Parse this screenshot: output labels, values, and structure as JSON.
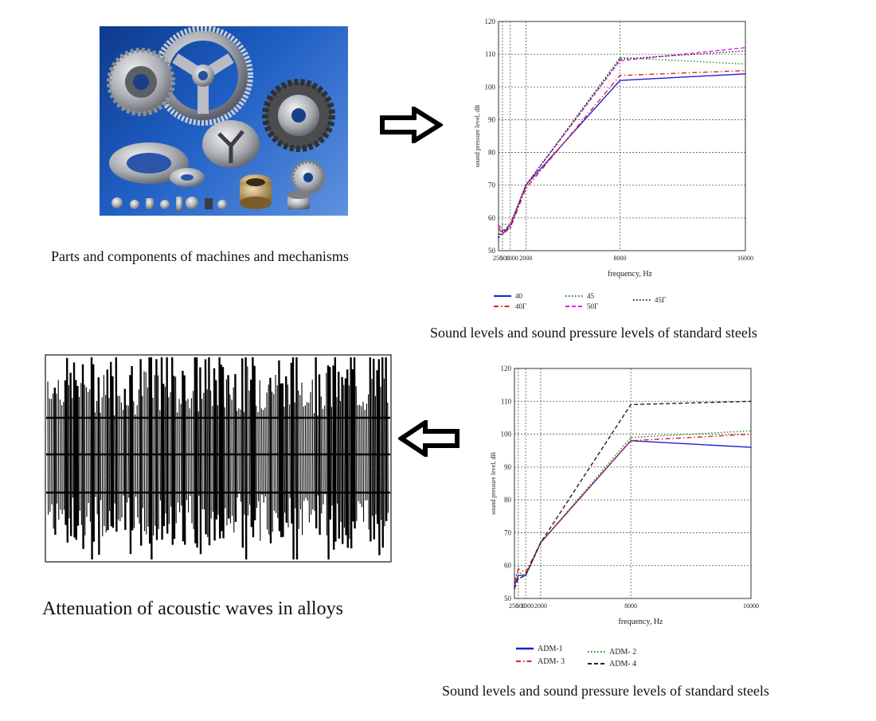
{
  "captions": {
    "parts": "Parts and components of machines and mechanisms",
    "chart_top": "Sound levels and sound pressure levels of standard steels",
    "attenuation": "Attenuation of acoustic waves in alloys",
    "chart_bottom": "Sound levels and sound pressure levels of standard steels"
  },
  "icons": {
    "arrow_right": "right-arrow-icon",
    "arrow_left": "left-arrow-icon"
  },
  "chart_data": [
    {
      "type": "line",
      "x": [
        250,
        500,
        1000,
        2000,
        8000,
        16000
      ],
      "xticks": [
        "250",
        "500",
        "1000",
        "2000",
        "8000",
        "16000"
      ],
      "xlabel": "frequency, Hz",
      "ylabel": "sound pressure level, dB",
      "ylim": [
        50,
        120
      ],
      "yticks": [
        50,
        60,
        70,
        80,
        90,
        100,
        110,
        120
      ],
      "grid": true,
      "legend_position": "bottom",
      "series": [
        {
          "name": "40",
          "color": "#1f1fd6",
          "dash": "solid",
          "values": [
            55,
            55,
            58,
            70,
            102,
            104
          ]
        },
        {
          "name": "40Г",
          "color": "#e02020",
          "dash": "dashdot",
          "values": [
            57,
            55,
            57,
            69,
            103.5,
            105
          ]
        },
        {
          "name": "45",
          "color": "#1e8c1e",
          "dash": "dotted",
          "values": [
            53,
            58,
            58,
            70,
            109,
            107
          ]
        },
        {
          "name": "50Г",
          "color": "#e020e0",
          "dash": "dashed",
          "values": [
            58,
            56,
            58,
            70,
            108,
            112
          ]
        },
        {
          "name": "45Г",
          "color": "#222222",
          "dash": "dotted",
          "values": [
            54,
            56,
            57,
            70,
            108.5,
            111
          ]
        }
      ]
    },
    {
      "type": "line",
      "x": [
        250,
        500,
        1000,
        2000,
        8000,
        16000
      ],
      "xticks": [
        "250",
        "500",
        "1000",
        "2000",
        "8000",
        "16000"
      ],
      "xlabel": "frequency, Hz",
      "ylabel": "sound pressure level, dB",
      "ylim": [
        50,
        120
      ],
      "yticks": [
        50,
        60,
        70,
        80,
        90,
        100,
        110,
        120
      ],
      "grid": true,
      "legend_position": "bottom",
      "series": [
        {
          "name": "ADM-1",
          "color": "#1f1fd6",
          "dash": "solid",
          "values": [
            54,
            57,
            57,
            67,
            98,
            96
          ]
        },
        {
          "name": "ADM- 2",
          "color": "#1e8c1e",
          "dash": "dotted",
          "values": [
            56,
            58,
            57,
            67,
            99,
            101
          ]
        },
        {
          "name": "ADM- 3",
          "color": "#e02020",
          "dash": "dashdot",
          "values": [
            55,
            59,
            58,
            67,
            98,
            100
          ]
        },
        {
          "name": "ADM- 4",
          "color": "#222222",
          "dash": "dashed",
          "values": [
            53,
            56,
            57,
            67,
            109,
            110
          ]
        }
      ]
    }
  ]
}
